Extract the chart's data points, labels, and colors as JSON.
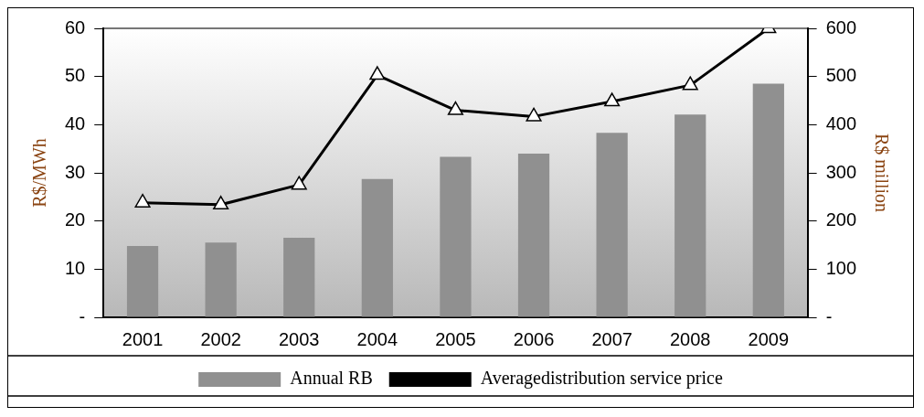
{
  "chart_data": {
    "type": "bar",
    "categories": [
      "2001",
      "2002",
      "2003",
      "2004",
      "2005",
      "2006",
      "2007",
      "2008",
      "2009"
    ],
    "ylabel": "R$/MWh",
    "y2label": "R$ million",
    "series": [
      {
        "name": "Annual RB",
        "axis": "y2",
        "color": "#909090",
        "values": [
          148,
          155,
          165,
          287,
          333,
          340,
          383,
          421,
          485
        ]
      },
      {
        "name": "Averagedistribution service price",
        "type": "line",
        "axis": "y",
        "color": "#000000",
        "marker": "triangle",
        "values": [
          23.8,
          23.4,
          27.5,
          50.3,
          43,
          41.7,
          44.8,
          48.2,
          60
        ]
      }
    ],
    "ylim": [
      0,
      60
    ],
    "yticks": [
      {
        "value": 0,
        "label": "-"
      },
      10,
      20,
      30,
      40,
      50,
      60
    ],
    "y2lim": [
      0,
      600
    ],
    "y2ticks": [
      {
        "value": 0,
        "label": "-"
      },
      100,
      200,
      300,
      400,
      500,
      600
    ],
    "grid": false,
    "legend": "bottom"
  }
}
